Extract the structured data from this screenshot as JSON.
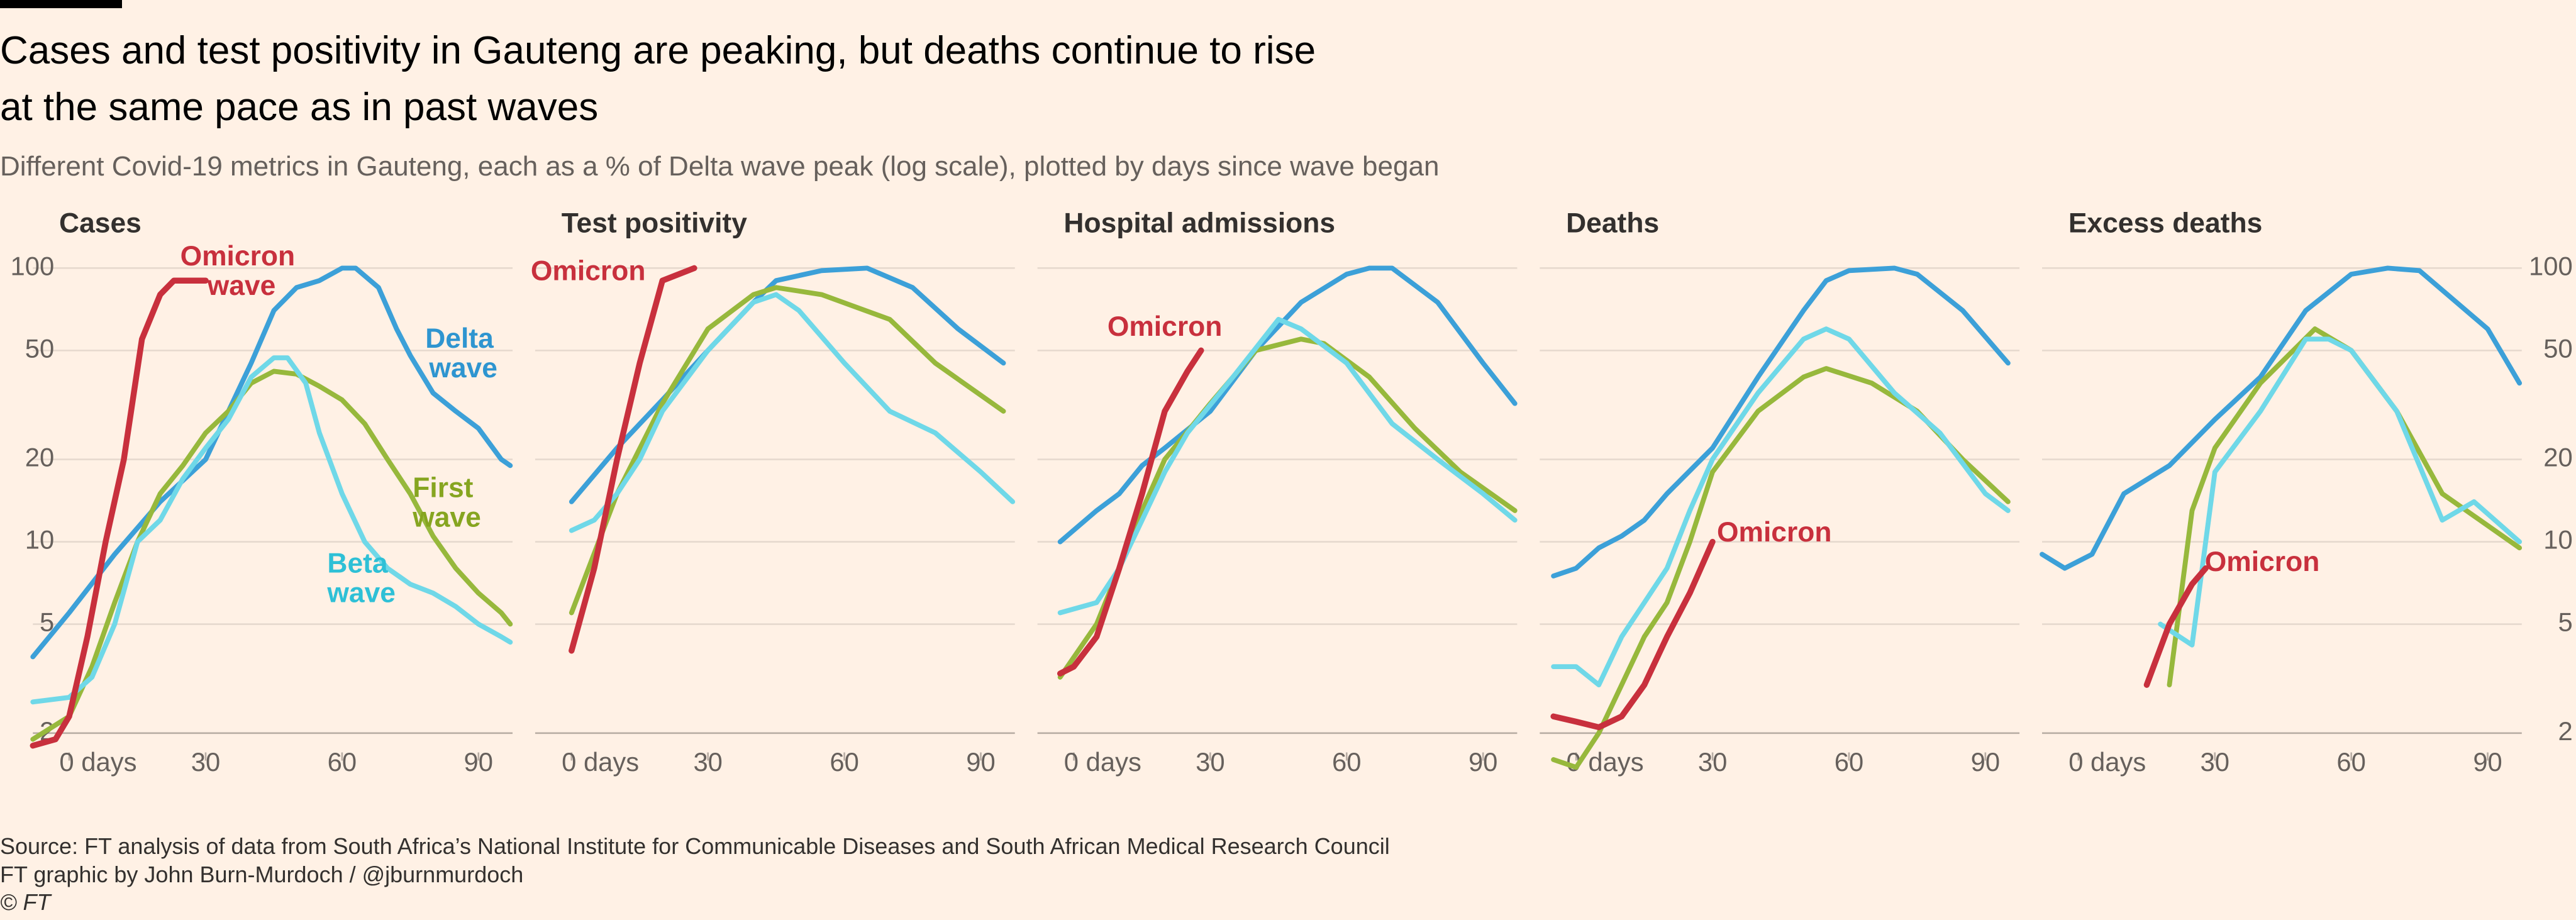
{
  "header": {
    "title": "Cases and test positivity in Gauteng are peaking, but deaths continue to rise at the same pace as in past waves",
    "subtitle": "Different Covid-19 metrics in Gauteng, each as a % of Delta wave peak (log scale), plotted by days since wave began"
  },
  "footer": {
    "source": "Source: FT analysis of data from South Africa’s National Institute for Communicable Diseases and South African Medical Research Council",
    "credit": "FT graphic by John Burn-Murdoch / @jburnmurdoch",
    "copyright": "© FT"
  },
  "chart_data": [
    {
      "type": "line",
      "title": "Cases",
      "log_scale": true,
      "grid": true,
      "xlim": [
        -8,
        97.5
      ],
      "ylim": [
        1.7,
        120
      ],
      "yticks": [
        2,
        5,
        10,
        20,
        50,
        100
      ],
      "xticks": [
        {
          "value": 0,
          "label": "0 days"
        },
        30,
        60,
        90
      ],
      "series": [
        {
          "name": "Delta wave",
          "color": "#3ca0d8",
          "x": [
            -8,
            0,
            10,
            20,
            30,
            40,
            45,
            50,
            55,
            60,
            63,
            68,
            72,
            75,
            80,
            85,
            90,
            95,
            97
          ],
          "values": [
            3.8,
            5.5,
            9,
            14,
            20,
            45,
            70,
            85,
            90,
            100,
            100,
            85,
            60,
            48,
            35,
            30,
            26,
            20,
            19
          ]
        },
        {
          "name": "First wave",
          "color": "#97b83c",
          "x": [
            -8,
            0,
            5,
            10,
            15,
            20,
            25,
            30,
            35,
            40,
            45,
            50,
            55,
            60,
            65,
            70,
            75,
            80,
            85,
            90,
            95,
            97
          ],
          "values": [
            1.9,
            2.3,
            3.5,
            6,
            10,
            15,
            19,
            25,
            30,
            38,
            42,
            41,
            37,
            33,
            27,
            20,
            15,
            10.5,
            8,
            6.5,
            5.5,
            5
          ]
        },
        {
          "name": "Beta wave",
          "color": "#6fd8e8",
          "x": [
            -8,
            0,
            5,
            10,
            15,
            20,
            25,
            30,
            35,
            40,
            45,
            48,
            52,
            55,
            60,
            65,
            70,
            75,
            80,
            85,
            90,
            95,
            97
          ],
          "values": [
            2.6,
            2.7,
            3.2,
            5,
            10,
            12,
            17,
            22,
            28,
            40,
            47,
            47,
            38,
            25,
            15,
            10,
            8,
            7,
            6.5,
            5.8,
            5,
            4.5,
            4.3
          ]
        },
        {
          "name": "Omicron wave",
          "color": "#c8303d",
          "x": [
            -8,
            -3,
            0,
            4,
            8,
            12,
            16,
            20,
            23,
            30
          ],
          "values": [
            1.8,
            1.9,
            2.3,
            4.5,
            10,
            20,
            55,
            80,
            90,
            90
          ]
        }
      ]
    },
    {
      "type": "line",
      "title": "Test positivity",
      "log_scale": true,
      "grid": true,
      "xlim": [
        -8,
        97.5
      ],
      "ylim": [
        1.7,
        120
      ],
      "yticks": [
        2,
        5,
        10,
        20,
        50,
        100
      ],
      "xticks": [
        {
          "value": 0,
          "label": "0 days"
        },
        30,
        60,
        90
      ],
      "series": [
        {
          "color": "#3ca0d8",
          "x": [
            0,
            10,
            20,
            30,
            40,
            45,
            55,
            65,
            75,
            85,
            95
          ],
          "values": [
            14,
            22,
            33,
            50,
            75,
            90,
            98,
            100,
            85,
            60,
            45
          ]
        },
        {
          "color": "#97b83c",
          "x": [
            0,
            10,
            20,
            30,
            40,
            45,
            55,
            70,
            80,
            95
          ],
          "values": [
            5.5,
            15,
            32,
            60,
            80,
            85,
            80,
            65,
            45,
            30
          ]
        },
        {
          "color": "#6fd8e8",
          "x": [
            0,
            5,
            10,
            15,
            20,
            30,
            40,
            45,
            50,
            60,
            70,
            80,
            90,
            97
          ],
          "values": [
            11,
            12,
            15,
            20,
            30,
            50,
            75,
            80,
            70,
            45,
            30,
            25,
            18,
            14
          ]
        },
        {
          "name": "Omicron",
          "color": "#c8303d",
          "x": [
            0,
            5,
            10,
            15,
            20,
            27
          ],
          "values": [
            4,
            8,
            20,
            45,
            90,
            100
          ]
        }
      ]
    },
    {
      "type": "line",
      "title": "Hospital admissions",
      "log_scale": true,
      "grid": true,
      "xlim": [
        -8,
        97.5
      ],
      "ylim": [
        1.7,
        120
      ],
      "yticks": [
        2,
        5,
        10,
        20,
        50,
        100
      ],
      "xticks": [
        {
          "value": 0,
          "label": "0 days"
        },
        30,
        60,
        90
      ],
      "series": [
        {
          "color": "#3ca0d8",
          "x": [
            -3,
            5,
            10,
            15,
            20,
            30,
            40,
            50,
            60,
            65,
            70,
            80,
            90,
            97
          ],
          "values": [
            10,
            13,
            15,
            19,
            22,
            30,
            50,
            75,
            95,
            100,
            100,
            75,
            45,
            32
          ]
        },
        {
          "color": "#97b83c",
          "x": [
            -3,
            5,
            10,
            15,
            20,
            30,
            40,
            50,
            55,
            65,
            75,
            85,
            97
          ],
          "values": [
            3.2,
            5,
            8,
            13,
            20,
            32,
            50,
            55,
            53,
            40,
            26,
            18,
            13
          ]
        },
        {
          "color": "#6fd8e8",
          "x": [
            -3,
            5,
            10,
            15,
            20,
            25,
            35,
            45,
            50,
            60,
            70,
            80,
            90,
            97
          ],
          "values": [
            5.5,
            6,
            8,
            12,
            18,
            25,
            40,
            65,
            60,
            45,
            27,
            20,
            15,
            12
          ]
        },
        {
          "name": "Omicron",
          "color": "#c8303d",
          "x": [
            -3,
            0,
            5,
            10,
            15,
            20,
            25,
            28
          ],
          "values": [
            3.3,
            3.5,
            4.5,
            8,
            15,
            30,
            42,
            50
          ]
        }
      ]
    },
    {
      "type": "line",
      "title": "Deaths",
      "log_scale": true,
      "grid": true,
      "xlim": [
        -8,
        97.5
      ],
      "ylim": [
        1.7,
        120
      ],
      "yticks": [
        2,
        5,
        10,
        20,
        50,
        100
      ],
      "xticks": [
        {
          "value": 0,
          "label": "0 days"
        },
        30,
        60,
        90
      ],
      "series": [
        {
          "color": "#3ca0d8",
          "x": [
            -5,
            0,
            5,
            10,
            15,
            20,
            30,
            40,
            50,
            55,
            60,
            70,
            75,
            85,
            95
          ],
          "values": [
            7.5,
            8,
            9.5,
            10.5,
            12,
            15,
            22,
            40,
            70,
            90,
            98,
            100,
            95,
            70,
            45
          ]
        },
        {
          "color": "#97b83c",
          "x": [
            -5,
            0,
            5,
            10,
            15,
            20,
            25,
            30,
            40,
            50,
            55,
            65,
            75,
            85,
            95
          ],
          "values": [
            1.6,
            1.5,
            2,
            3,
            4.5,
            6,
            10,
            18,
            30,
            40,
            43,
            38,
            30,
            20,
            14
          ]
        },
        {
          "color": "#6fd8e8",
          "x": [
            -5,
            0,
            5,
            10,
            15,
            20,
            25,
            30,
            40,
            50,
            55,
            60,
            70,
            80,
            90,
            95
          ],
          "values": [
            3.5,
            3.5,
            3,
            4.5,
            6,
            8,
            13,
            20,
            35,
            55,
            60,
            55,
            35,
            25,
            15,
            13
          ]
        },
        {
          "name": "Omicron",
          "color": "#c8303d",
          "x": [
            -5,
            0,
            5,
            10,
            15,
            20,
            25,
            30
          ],
          "values": [
            2.3,
            2.2,
            2.1,
            2.3,
            3,
            4.5,
            6.5,
            10
          ]
        }
      ]
    },
    {
      "type": "line",
      "title": "Excess deaths",
      "log_scale": true,
      "grid": true,
      "xlim": [
        -8,
        97.5
      ],
      "ylim": [
        1.7,
        120
      ],
      "yticks": [
        2,
        5,
        10,
        20,
        50,
        100
      ],
      "xticks": [
        {
          "value": 0,
          "label": "0 days"
        },
        30,
        60,
        90
      ],
      "series": [
        {
          "color": "#3ca0d8",
          "x": [
            -8,
            -3,
            3,
            10,
            20,
            30,
            40,
            50,
            60,
            68,
            75,
            90,
            97
          ],
          "values": [
            9,
            8,
            9,
            15,
            19,
            28,
            40,
            70,
            95,
            100,
            98,
            60,
            38
          ]
        },
        {
          "color": "#97b83c",
          "x": [
            20,
            25,
            30,
            40,
            52,
            60,
            70,
            80,
            97
          ],
          "values": [
            3,
            13,
            22,
            38,
            60,
            50,
            30,
            15,
            9.5
          ]
        },
        {
          "color": "#6fd8e8",
          "x": [
            18,
            25,
            30,
            40,
            50,
            55,
            60,
            70,
            80,
            87,
            97
          ],
          "values": [
            5,
            4.2,
            18,
            30,
            55,
            55,
            50,
            30,
            12,
            14,
            10
          ]
        },
        {
          "name": "Omicron",
          "color": "#c8303d",
          "x": [
            15,
            20,
            25,
            28
          ],
          "values": [
            3,
            5,
            7,
            8
          ]
        }
      ]
    }
  ]
}
